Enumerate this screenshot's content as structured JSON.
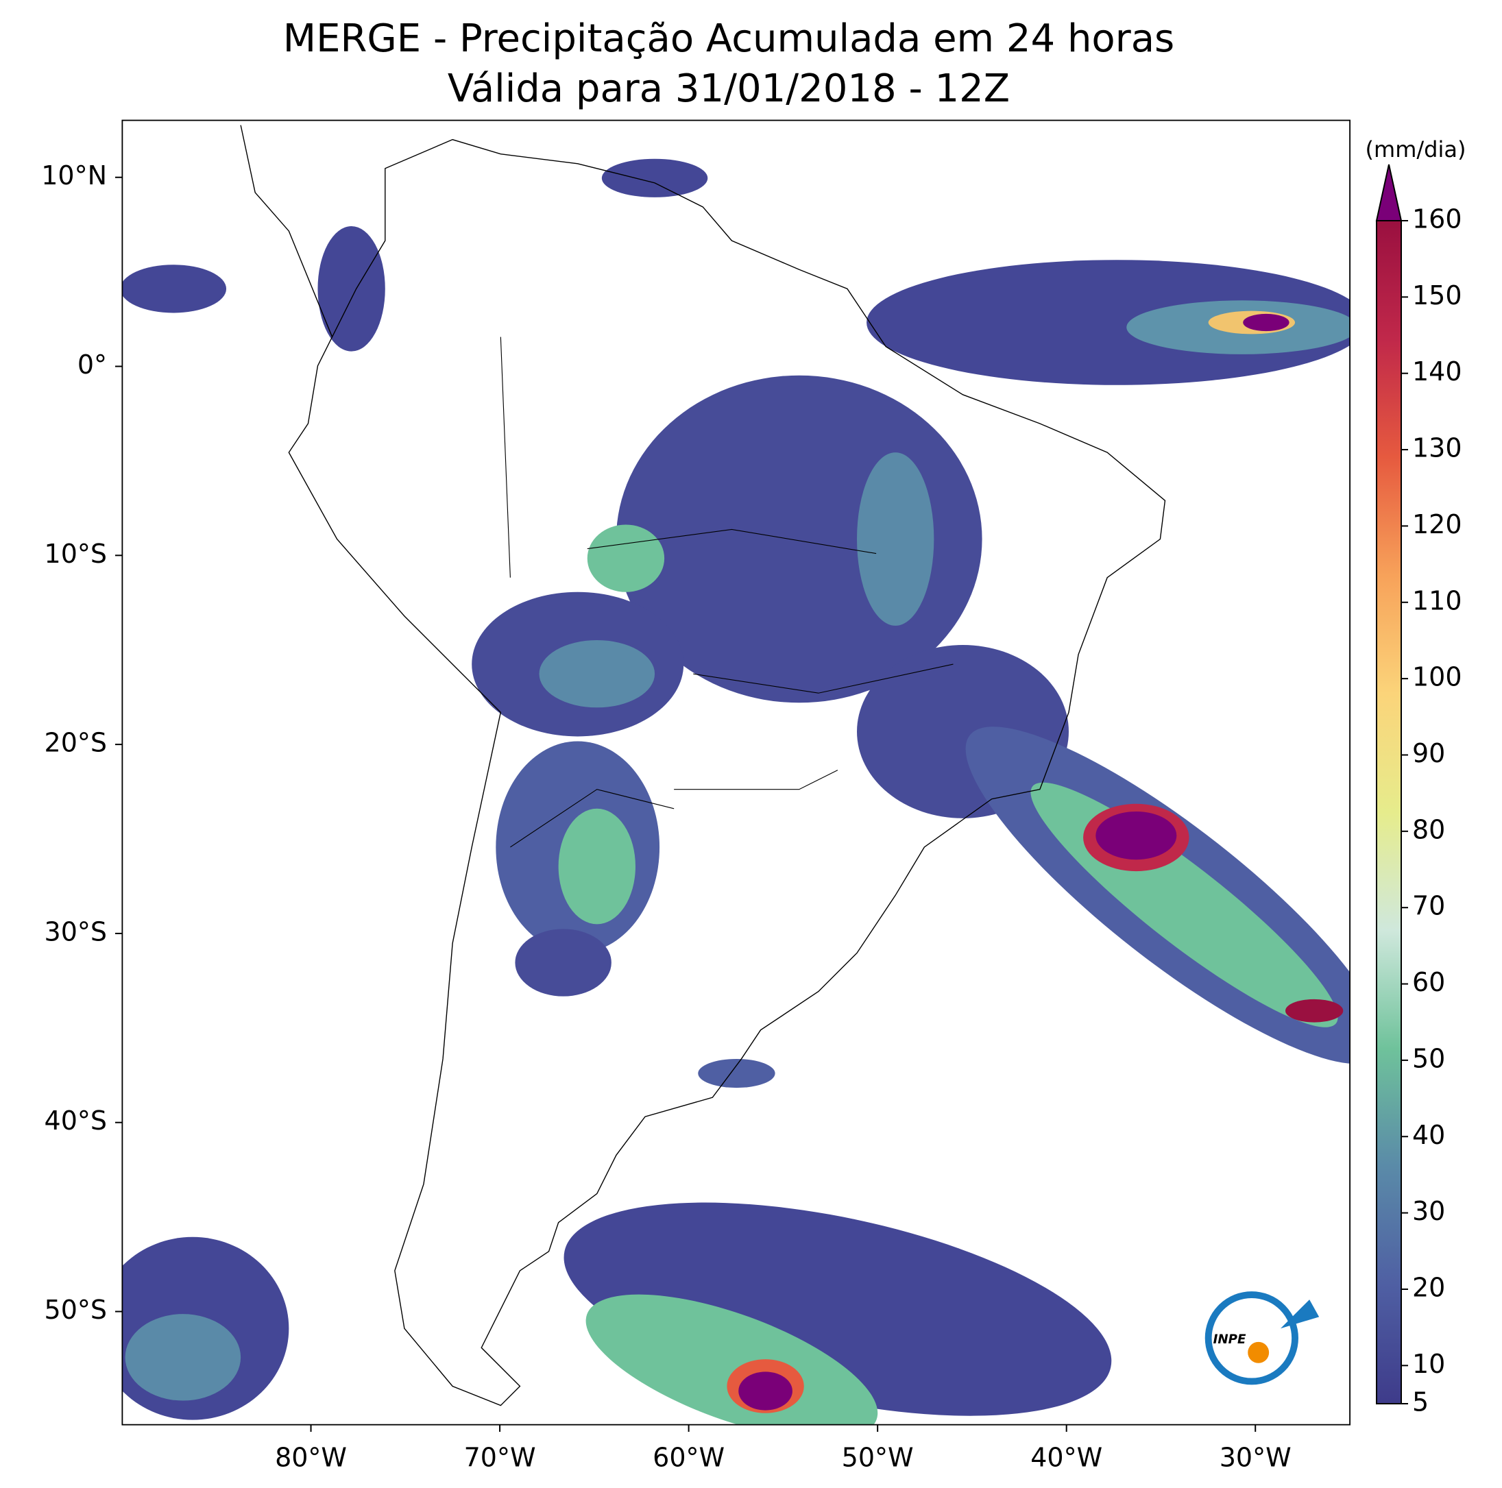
{
  "title": "MERGE - Precipitação Acumulada em 24 horas",
  "subtitle": "Válida para 31/01/2018 - 12Z",
  "map": {
    "xlim": [
      -90,
      -25
    ],
    "ylim": [
      -56,
      13
    ],
    "xticks": [
      {
        "value": -80,
        "label": "80°W"
      },
      {
        "value": -70,
        "label": "70°W"
      },
      {
        "value": -60,
        "label": "60°W"
      },
      {
        "value": -50,
        "label": "50°W"
      },
      {
        "value": -40,
        "label": "40°W"
      },
      {
        "value": -30,
        "label": "30°W"
      }
    ],
    "yticks": [
      {
        "value": 10,
        "label": "10°N"
      },
      {
        "value": 0,
        "label": "0°"
      },
      {
        "value": -10,
        "label": "10°S"
      },
      {
        "value": -20,
        "label": "20°S"
      },
      {
        "value": -30,
        "label": "30°S"
      },
      {
        "value": -40,
        "label": "40°S"
      },
      {
        "value": -50,
        "label": "50°S"
      }
    ]
  },
  "colorbar": {
    "label": "(mm/dia)",
    "lim": [
      5,
      160
    ],
    "ticks": [
      5,
      10,
      20,
      30,
      40,
      50,
      60,
      70,
      80,
      90,
      100,
      110,
      120,
      130,
      140,
      150,
      160
    ],
    "colors": [
      "#3e3b8a",
      "#4f5fa3",
      "#5a8aa8",
      "#6fc29b",
      "#cfe8dc",
      "#e6ec8c",
      "#fbd47a",
      "#f7a25a",
      "#e65a3f",
      "#c0284a",
      "#9a1040"
    ],
    "extend_color": "#7a0078"
  },
  "logo": "INPE"
}
